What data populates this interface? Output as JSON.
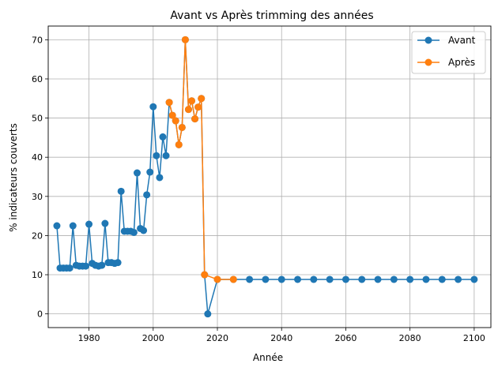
{
  "chart_data": {
    "type": "line",
    "title": "Avant vs Après trimming des années",
    "xlabel": "Année",
    "ylabel": "% indicateurs couverts",
    "xlim": [
      1967.3,
      2105.2
    ],
    "ylim": [
      -3.5,
      73.5
    ],
    "xticks": [
      1980,
      2000,
      2020,
      2040,
      2060,
      2080,
      2100
    ],
    "yticks": [
      0,
      10,
      20,
      30,
      40,
      50,
      60,
      70
    ],
    "grid": true,
    "legend": "top-right",
    "series": [
      {
        "name": "Avant",
        "color": "#1f77b4",
        "x": [
          1970,
          1971,
          1972,
          1973,
          1974,
          1975,
          1976,
          1977,
          1978,
          1979,
          1980,
          1981,
          1982,
          1983,
          1984,
          1985,
          1986,
          1987,
          1988,
          1989,
          1990,
          1991,
          1992,
          1993,
          1994,
          1995,
          1996,
          1997,
          1998,
          1999,
          2000,
          2001,
          2002,
          2003,
          2004,
          2005,
          2006,
          2007,
          2008,
          2009,
          2010,
          2011,
          2012,
          2013,
          2014,
          2015,
          2016,
          2017,
          2020,
          2025,
          2030,
          2035,
          2040,
          2045,
          2050,
          2055,
          2060,
          2065,
          2070,
          2075,
          2080,
          2085,
          2090,
          2095,
          2100
        ],
        "y": [
          22.5,
          11.7,
          11.7,
          11.7,
          11.7,
          22.5,
          12.4,
          12.2,
          12.2,
          12.2,
          22.9,
          12.9,
          12.4,
          12.2,
          12.4,
          23.1,
          13.1,
          13.1,
          12.9,
          13.1,
          31.3,
          21.1,
          21.1,
          21.1,
          20.8,
          36.0,
          21.8,
          21.3,
          30.4,
          36.2,
          52.9,
          40.4,
          34.8,
          45.2,
          40.4,
          54.0,
          50.7,
          49.3,
          43.2,
          47.6,
          70.0,
          52.2,
          54.4,
          49.8,
          52.8,
          55.0,
          10.0,
          0.0,
          8.8,
          8.8,
          8.8,
          8.8,
          8.8,
          8.8,
          8.8,
          8.8,
          8.8,
          8.8,
          8.8,
          8.8,
          8.8,
          8.8,
          8.8,
          8.8,
          8.8
        ]
      },
      {
        "name": "Après",
        "color": "#ff7f0e",
        "x": [
          2005,
          2006,
          2007,
          2008,
          2009,
          2010,
          2011,
          2012,
          2013,
          2014,
          2015,
          2016,
          2020,
          2025
        ],
        "y": [
          54.0,
          50.7,
          49.3,
          43.2,
          47.6,
          70.0,
          52.2,
          54.4,
          49.8,
          52.8,
          55.0,
          10.0,
          8.8,
          8.8
        ]
      }
    ]
  }
}
